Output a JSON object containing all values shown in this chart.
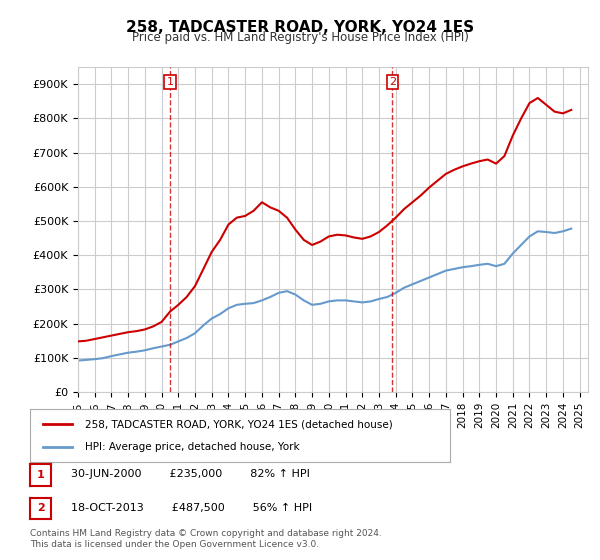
{
  "title": "258, TADCASTER ROAD, YORK, YO24 1ES",
  "subtitle": "Price paid vs. HM Land Registry's House Price Index (HPI)",
  "property_label": "258, TADCASTER ROAD, YORK, YO24 1ES (detached house)",
  "hpi_label": "HPI: Average price, detached house, York",
  "footer": "Contains HM Land Registry data © Crown copyright and database right 2024.\nThis data is licensed under the Open Government Licence v3.0.",
  "ylim": [
    0,
    950000
  ],
  "yticks": [
    0,
    100000,
    200000,
    300000,
    400000,
    500000,
    600000,
    700000,
    800000,
    900000
  ],
  "ytick_labels": [
    "£0",
    "£100K",
    "£200K",
    "£300K",
    "£400K",
    "£500K",
    "£600K",
    "£700K",
    "£800K",
    "£900K"
  ],
  "xlim_start": 1995.0,
  "xlim_end": 2025.5,
  "transactions": [
    {
      "num": 1,
      "date": "30-JUN-2000",
      "price": 235000,
      "pct": "82%",
      "direction": "↑",
      "year": 2000.5
    },
    {
      "num": 2,
      "date": "18-OCT-2013",
      "price": 487500,
      "pct": "56%",
      "direction": "↑",
      "year": 2013.8
    }
  ],
  "property_color": "#cc0000",
  "hpi_color": "#6699cc",
  "background_color": "#ffffff",
  "grid_color": "#cccccc",
  "hpi_data_x": [
    1995.0,
    1995.5,
    1996.0,
    1996.5,
    1997.0,
    1997.5,
    1998.0,
    1998.5,
    1999.0,
    1999.5,
    2000.0,
    2000.5,
    2001.0,
    2001.5,
    2002.0,
    2002.5,
    2003.0,
    2003.5,
    2004.0,
    2004.5,
    2005.0,
    2005.5,
    2006.0,
    2006.5,
    2007.0,
    2007.5,
    2008.0,
    2008.5,
    2009.0,
    2009.5,
    2010.0,
    2010.5,
    2011.0,
    2011.5,
    2012.0,
    2012.5,
    2013.0,
    2013.5,
    2014.0,
    2014.5,
    2015.0,
    2015.5,
    2016.0,
    2016.5,
    2017.0,
    2017.5,
    2018.0,
    2018.5,
    2019.0,
    2019.5,
    2020.0,
    2020.5,
    2021.0,
    2021.5,
    2022.0,
    2022.5,
    2023.0,
    2023.5,
    2024.0,
    2024.5
  ],
  "hpi_data_y": [
    92000,
    94000,
    96000,
    99000,
    105000,
    110000,
    115000,
    118000,
    122000,
    128000,
    133000,
    138000,
    148000,
    158000,
    172000,
    195000,
    215000,
    228000,
    245000,
    255000,
    258000,
    260000,
    268000,
    278000,
    290000,
    295000,
    285000,
    268000,
    255000,
    258000,
    265000,
    268000,
    268000,
    265000,
    262000,
    265000,
    272000,
    278000,
    290000,
    305000,
    315000,
    325000,
    335000,
    345000,
    355000,
    360000,
    365000,
    368000,
    372000,
    375000,
    368000,
    375000,
    405000,
    430000,
    455000,
    470000,
    468000,
    465000,
    470000,
    478000
  ],
  "property_data_x": [
    1995.0,
    1995.5,
    1996.0,
    1996.5,
    1997.0,
    1997.5,
    1998.0,
    1998.5,
    1999.0,
    1999.5,
    2000.0,
    2000.5,
    2001.0,
    2001.5,
    2002.0,
    2002.5,
    2003.0,
    2003.5,
    2004.0,
    2004.5,
    2005.0,
    2005.5,
    2006.0,
    2006.5,
    2007.0,
    2007.5,
    2008.0,
    2008.5,
    2009.0,
    2009.5,
    2010.0,
    2010.5,
    2011.0,
    2011.5,
    2012.0,
    2012.5,
    2013.0,
    2013.5,
    2014.0,
    2014.5,
    2015.0,
    2015.5,
    2016.0,
    2016.5,
    2017.0,
    2017.5,
    2018.0,
    2018.5,
    2019.0,
    2019.5,
    2020.0,
    2020.5,
    2021.0,
    2021.5,
    2022.0,
    2022.5,
    2023.0,
    2023.5,
    2024.0,
    2024.5
  ],
  "property_data_y": [
    148000,
    150000,
    155000,
    160000,
    165000,
    170000,
    175000,
    178000,
    183000,
    192000,
    205000,
    235000,
    255000,
    278000,
    310000,
    360000,
    410000,
    445000,
    490000,
    510000,
    515000,
    530000,
    555000,
    540000,
    530000,
    510000,
    475000,
    445000,
    430000,
    440000,
    455000,
    460000,
    458000,
    452000,
    448000,
    455000,
    468000,
    487500,
    510000,
    535000,
    555000,
    575000,
    598000,
    618000,
    638000,
    650000,
    660000,
    668000,
    675000,
    680000,
    668000,
    690000,
    750000,
    800000,
    845000,
    860000,
    840000,
    820000,
    815000,
    825000
  ]
}
